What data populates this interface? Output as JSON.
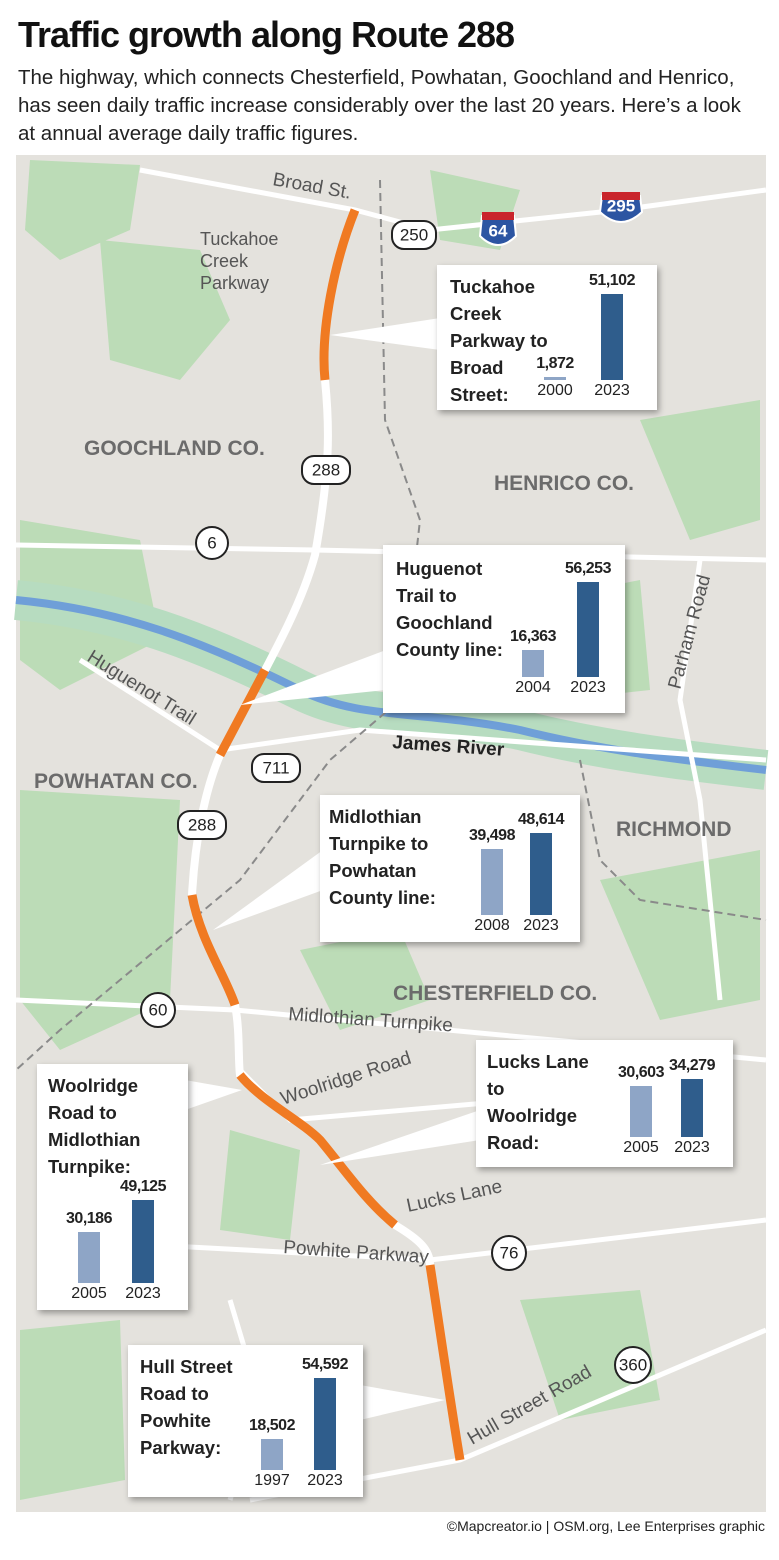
{
  "header": {
    "title": "Traffic growth along Route 288",
    "subtitle": "The highway, which connects Chesterfield, Powhatan, Goochland and Henrico, has seen daily traffic increase considerably over the last 20 years. Here’s a look at annual average daily traffic figures."
  },
  "map_labels": [
    "Broad St.",
    "Tuckahoe Creek Parkway",
    "GOOCHLAND CO.",
    "HENRICO CO.",
    "Huguenot Trail",
    "Parham Road",
    "James River",
    "POWHATAN CO.",
    "RICHMOND",
    "CHESTERFIELD CO.",
    "Midlothian Turnpike",
    "Woolridge Road",
    "Lucks Lane",
    "Powhite Parkway",
    "Hull Street Road"
  ],
  "shields": [
    "250",
    "64",
    "295",
    "288",
    "6",
    "711",
    "288",
    "60",
    "76",
    "360"
  ],
  "callouts": [
    {
      "label": "Tuckahoe Creek Parkway to Broad Street:",
      "years": [
        "2000",
        "2023"
      ],
      "values": [
        1872,
        51102
      ],
      "value_labels": [
        "1,872",
        "51,102"
      ]
    },
    {
      "label": "Huguenot Trail to Goochland County line:",
      "years": [
        "2004",
        "2023"
      ],
      "values": [
        16363,
        56253
      ],
      "value_labels": [
        "16,363",
        "56,253"
      ]
    },
    {
      "label": "Midlothian Turnpike to Powhatan County line:",
      "years": [
        "2008",
        "2023"
      ],
      "values": [
        39498,
        48614
      ],
      "value_labels": [
        "39,498",
        "48,614"
      ]
    },
    {
      "label": "Lucks Lane to Woolridge Road:",
      "years": [
        "2005",
        "2023"
      ],
      "values": [
        30603,
        34279
      ],
      "value_labels": [
        "30,603",
        "34,279"
      ]
    },
    {
      "label": "Woolridge Road to Midlothian Turnpike:",
      "years": [
        "2005",
        "2023"
      ],
      "values": [
        30186,
        49125
      ],
      "value_labels": [
        "30,186",
        "49,125"
      ]
    },
    {
      "label": "Hull Street Road to Powhite Parkway:",
      "years": [
        "1997",
        "2023"
      ],
      "values": [
        18502,
        54592
      ],
      "value_labels": [
        "18,502",
        "54,592"
      ]
    }
  ],
  "credit": "©Mapcreator.io | OSM.org, Lee Enterprises graphic"
}
